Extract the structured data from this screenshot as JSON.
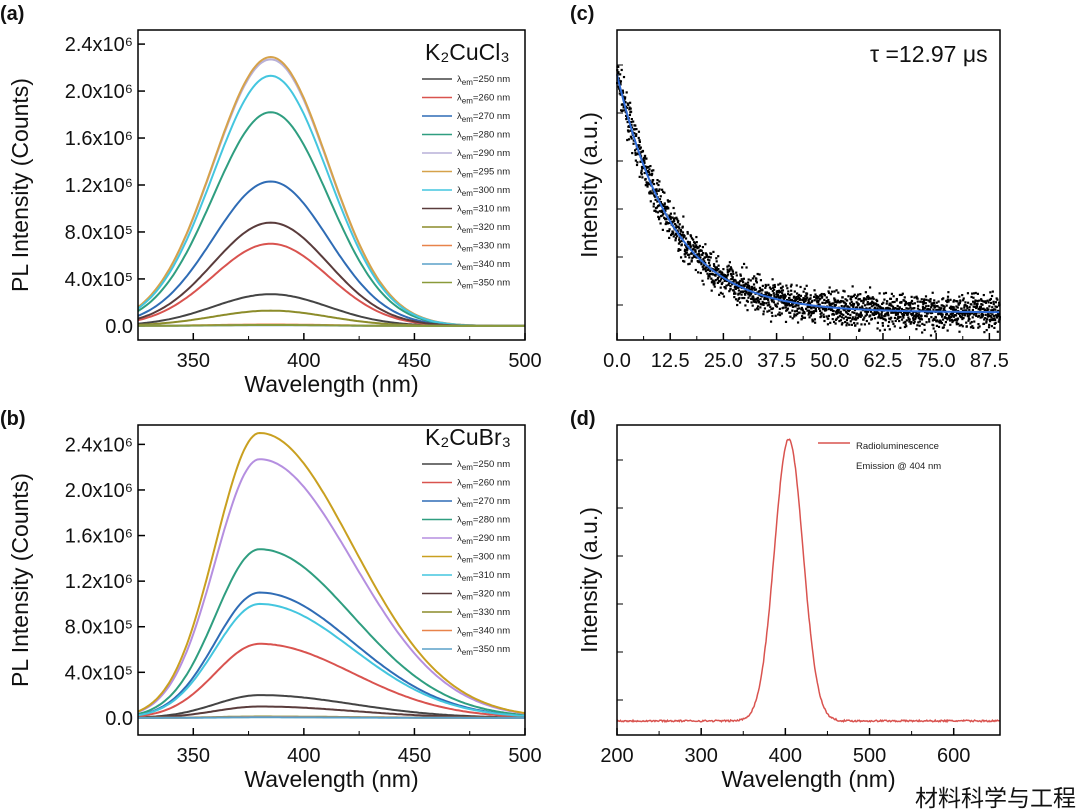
{
  "chart_data": [
    {
      "panel_label": "(a)",
      "type": "line",
      "title": "K₂CuCl₃",
      "xlabel": "Wavelength (nm)",
      "ylabel": "PL Intensity (Counts)",
      "xlim": [
        325,
        500
      ],
      "ylim": [
        -120000,
        2520000
      ],
      "xticks": [
        350,
        400,
        450,
        500
      ],
      "yticks": [
        0,
        400000,
        800000,
        1200000,
        1600000,
        2000000,
        2400000
      ],
      "ytick_labels": [
        "0.0",
        "4.0x10⁵",
        "8.0x10⁵",
        "1.2x10⁶",
        "1.6x10⁶",
        "2.0x10⁶",
        "2.4x10⁶"
      ],
      "peak_nm": 385,
      "series": [
        {
          "name": "=250 nm",
          "color": "#444444",
          "peak": 270000
        },
        {
          "name": "=260 nm",
          "color": "#d9534f",
          "peak": 700000
        },
        {
          "name": "=270 nm",
          "color": "#2f6cb5",
          "peak": 1230000
        },
        {
          "name": "=280 nm",
          "color": "#2f9e80",
          "peak": 1820000
        },
        {
          "name": "=290 nm",
          "color": "#b8b0d8",
          "peak": 2270000
        },
        {
          "name": "=295 nm",
          "color": "#d6a24a",
          "peak": 2290000
        },
        {
          "name": "=300 nm",
          "color": "#44c6df",
          "peak": 2130000
        },
        {
          "name": "=310 nm",
          "color": "#5a3c3c",
          "peak": 880000
        },
        {
          "name": "=320 nm",
          "color": "#8c8c2a",
          "peak": 130000
        },
        {
          "name": "=330 nm",
          "color": "#e8834a",
          "peak": 12000
        },
        {
          "name": "=340 nm",
          "color": "#5aa0c8",
          "peak": 6000
        },
        {
          "name": "=350 nm",
          "color": "#8a9a3a",
          "peak": 8000
        }
      ]
    },
    {
      "panel_label": "(b)",
      "type": "line",
      "title": "K₂CuBr₃",
      "xlabel": "Wavelength (nm)",
      "ylabel": "PL Intensity (Counts)",
      "xlim": [
        325,
        500
      ],
      "ylim": [
        -150000,
        2570000
      ],
      "xticks": [
        350,
        400,
        450,
        500
      ],
      "yticks": [
        0,
        400000,
        800000,
        1200000,
        1600000,
        2000000,
        2400000
      ],
      "ytick_labels": [
        "0.0",
        "4.0x10⁵",
        "8.0x10⁵",
        "1.2x10⁶",
        "1.6x10⁶",
        "2.0x10⁶",
        "2.4x10⁶"
      ],
      "peak_nm": 380,
      "series": [
        {
          "name": "=250 nm",
          "color": "#444444",
          "peak": 200000
        },
        {
          "name": "=260 nm",
          "color": "#d9534f",
          "peak": 650000
        },
        {
          "name": "=270 nm",
          "color": "#2f6cb5",
          "peak": 1100000
        },
        {
          "name": "=280 nm",
          "color": "#2f9e80",
          "peak": 1480000
        },
        {
          "name": "=290 nm",
          "color": "#b58fe0",
          "peak": 2270000
        },
        {
          "name": "=300 nm",
          "color": "#c9a020",
          "peak": 2500000
        },
        {
          "name": "=310 nm",
          "color": "#44c6df",
          "peak": 1000000
        },
        {
          "name": "=320 nm",
          "color": "#5a3c3c",
          "peak": 100000
        },
        {
          "name": "=330 nm",
          "color": "#8c8c2a",
          "peak": 12000
        },
        {
          "name": "=340 nm",
          "color": "#e8834a",
          "peak": 8000
        },
        {
          "name": "=350 nm",
          "color": "#5aa0c8",
          "peak": 5000
        }
      ]
    },
    {
      "panel_label": "(c)",
      "type": "scatter",
      "annotation": "τ =12.97 μs",
      "ylabel": "Intensity (a.u.)",
      "xlim": [
        0,
        90
      ],
      "ylim": [
        -0.1,
        1.02
      ],
      "xticks": [
        0,
        12.5,
        25,
        37.5,
        50,
        62.5,
        75,
        87.5
      ],
      "xtick_labels": [
        "0.0",
        "12.5",
        "25.0",
        "37.5",
        "50.0",
        "62.5",
        "75.0",
        "87.5"
      ],
      "tau": 12.97,
      "fit_color": "#2f6cd8",
      "point_color": "#000000"
    },
    {
      "panel_label": "(d)",
      "type": "line",
      "xlabel": "Wavelength (nm)",
      "ylabel": "Intensity (a.u.)",
      "xlim": [
        200,
        655
      ],
      "ylim": [
        -0.05,
        1.05
      ],
      "xticks": [
        200,
        300,
        400,
        500,
        600
      ],
      "legend": [
        "Radioluminescence",
        "Emission @ 404 nm"
      ],
      "peak_nm": 404,
      "color": "#d9534f"
    }
  ],
  "watermark": "材料科学与工程"
}
